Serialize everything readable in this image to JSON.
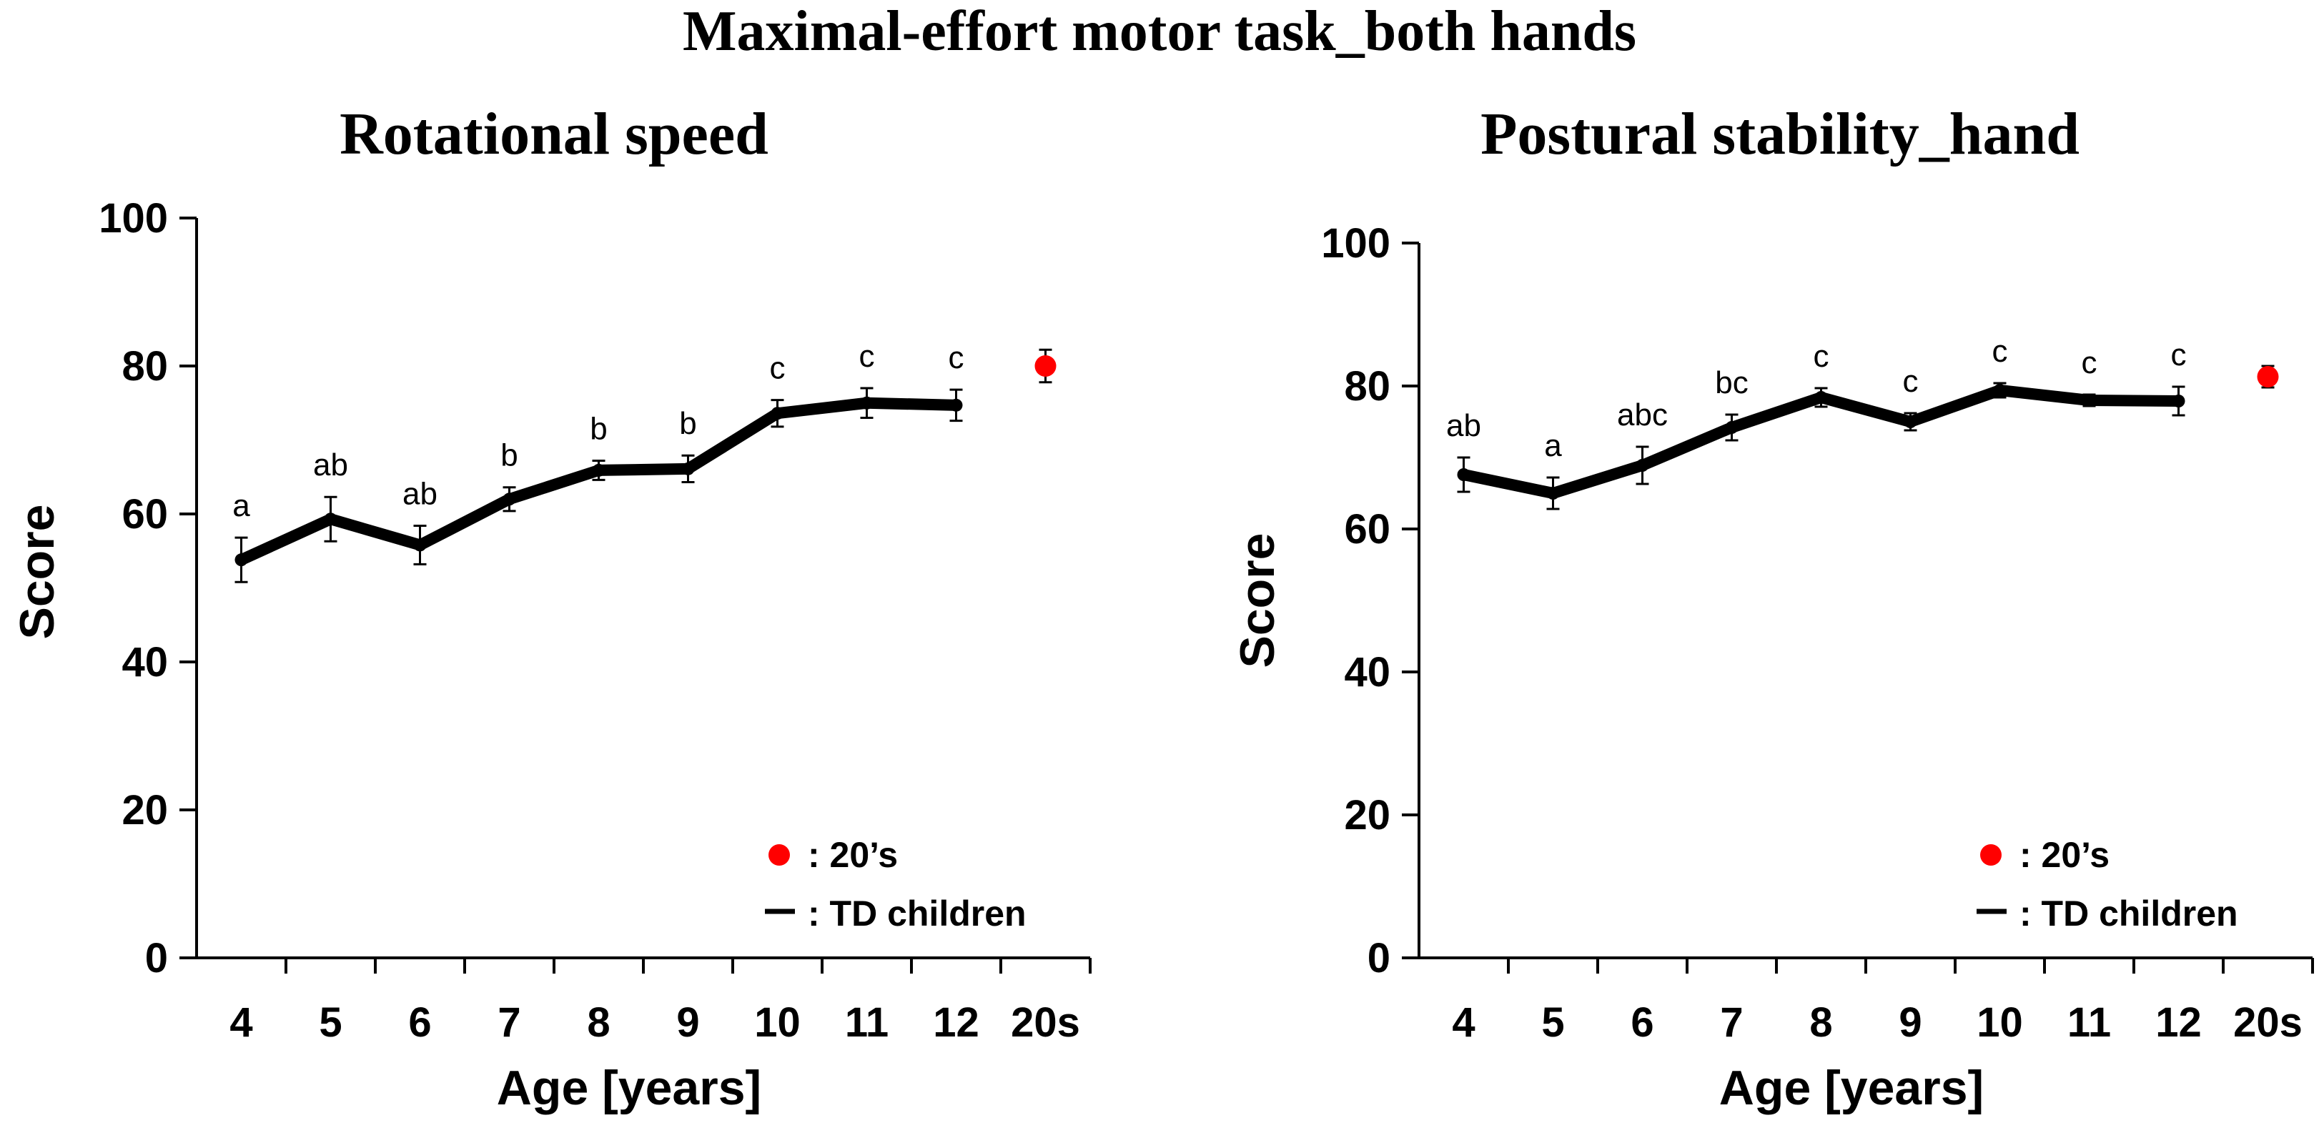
{
  "figure_title": "Maximal-effort motor task_both hands",
  "chart_data": [
    {
      "type": "line",
      "title": "Rotational speed",
      "xlabel": "Age [years]",
      "ylabel": "Score",
      "ylim": [
        0,
        100
      ],
      "yticks": [
        "0",
        "20",
        "40",
        "60",
        "80",
        "100"
      ],
      "categories": [
        "4",
        "5",
        "6",
        "7",
        "8",
        "9",
        "10",
        "11",
        "12",
        "20s"
      ],
      "series": [
        {
          "name": "TD children",
          "legend_label": ": TD children",
          "x": [
            "4",
            "5",
            "6",
            "7",
            "8",
            "9",
            "10",
            "11",
            "12"
          ],
          "values": [
            53.8,
            59.3,
            55.8,
            62.0,
            65.9,
            66.1,
            73.6,
            75.0,
            74.7
          ],
          "errors": [
            3.0,
            3.0,
            2.6,
            1.6,
            1.3,
            1.8,
            1.8,
            2.0,
            2.1
          ],
          "significance": [
            "a",
            "ab",
            "ab",
            "b",
            "b",
            "b",
            "c",
            "c",
            "c"
          ],
          "color": "#000000"
        },
        {
          "name": "20's",
          "legend_label": ": 20’s",
          "x": [
            "20s"
          ],
          "values": [
            80.0
          ],
          "errors": [
            2.2
          ],
          "color": "#ff0000"
        }
      ]
    },
    {
      "type": "line",
      "title": "Postural stability_hand",
      "xlabel": "Age [years]",
      "ylabel": "Score",
      "ylim": [
        0,
        100
      ],
      "yticks": [
        "0",
        "20",
        "40",
        "60",
        "80",
        "100"
      ],
      "categories": [
        "4",
        "5",
        "6",
        "7",
        "8",
        "9",
        "10",
        "11",
        "12",
        "20s"
      ],
      "series": [
        {
          "name": "TD children",
          "legend_label": ": TD children",
          "x": [
            "4",
            "5",
            "6",
            "7",
            "8",
            "9",
            "10",
            "11",
            "12"
          ],
          "values": [
            67.6,
            65.0,
            68.9,
            74.2,
            78.4,
            75.0,
            79.4,
            78.0,
            77.9
          ],
          "errors": [
            2.4,
            2.2,
            2.6,
            1.8,
            1.3,
            1.2,
            1.0,
            0.8,
            2.0
          ],
          "significance": [
            "ab",
            "a",
            "abc",
            "bc",
            "c",
            "c",
            "c",
            "c",
            "c"
          ],
          "color": "#000000"
        },
        {
          "name": "20's",
          "legend_label": ": 20’s",
          "x": [
            "20s"
          ],
          "values": [
            81.3
          ],
          "errors": [
            1.5
          ],
          "color": "#ff0000"
        }
      ]
    }
  ]
}
